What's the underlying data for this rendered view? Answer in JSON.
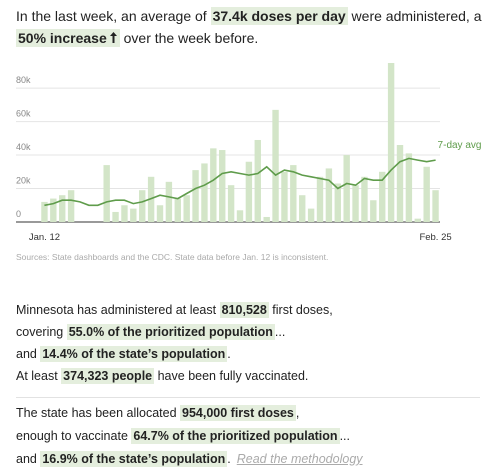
{
  "headline": [
    "In the last week, an average of",
    "37.4k doses per day",
    "were administered, a",
    "50% increase",
    "over the week before."
  ],
  "chart_data": {
    "type": "bar",
    "categories": [
      "Jan. 12",
      null,
      null,
      null,
      null,
      null,
      null,
      null,
      null,
      null,
      null,
      null,
      null,
      null,
      null,
      null,
      null,
      null,
      null,
      null,
      null,
      null,
      null,
      null,
      null,
      null,
      null,
      null,
      null,
      null,
      null,
      null,
      null,
      null,
      null,
      null,
      null,
      null,
      null,
      null,
      null,
      null,
      null,
      null,
      "Feb. 25"
    ],
    "series": [
      {
        "type": "bar",
        "color": "#d3e5c8",
        "values": [
          12000,
          14000,
          16000,
          19000,
          0,
          0,
          0,
          34000,
          6000,
          10000,
          8000,
          19000,
          27000,
          10000,
          24000,
          14000,
          16000,
          31000,
          35000,
          44000,
          43000,
          22000,
          7000,
          36000,
          49000,
          3000,
          67000,
          30000,
          34000,
          16000,
          8000,
          27000,
          32000,
          23000,
          40000,
          22000,
          27000,
          13000,
          30000,
          95000,
          46000,
          41000,
          2000,
          33000,
          19000
        ]
      },
      {
        "type": "line",
        "name": "7-day avg",
        "color": "#5f9c4b",
        "values": [
          10000,
          11000,
          13000,
          13000,
          12000,
          10000,
          10000,
          12000,
          13000,
          13000,
          11000,
          12000,
          14000,
          16000,
          15000,
          14000,
          17000,
          20000,
          22000,
          25000,
          29000,
          30000,
          29000,
          28000,
          29000,
          33000,
          28000,
          31000,
          30000,
          28000,
          27000,
          26000,
          25000,
          20000,
          23000,
          22000,
          26000,
          25000,
          25000,
          31000,
          36000,
          38000,
          37000,
          36000,
          37000
        ]
      }
    ],
    "ylim": [
      0,
      95000
    ],
    "yticks": [
      0,
      {
        "value": 20000,
        "label": "20k"
      },
      {
        "value": 40000,
        "label": "40k"
      },
      {
        "value": 60000,
        "label": "60k"
      },
      {
        "value": 80000,
        "label": "80k"
      }
    ],
    "grid": true
  },
  "source": "Sources: State dashboards and the CDC. State data before Jan. 12 is inconsistent.",
  "block1": [
    [
      "Minnesota has administered at least",
      "810,528",
      "first doses,"
    ],
    [
      "covering",
      "55.0% of the prioritized population",
      "..."
    ],
    [
      "and",
      "14.4% of the state’s population",
      "."
    ],
    [
      "At least",
      "374,323 people",
      "have been fully vaccinated."
    ]
  ],
  "block2": [
    [
      "The state has been allocated",
      "954,000 first doses",
      ","
    ],
    [
      "enough to vaccinate",
      "64.7% of the prioritized population",
      "..."
    ],
    [
      "and",
      "16.9% of the state’s population",
      ".",
      "Read the methodology"
    ]
  ]
}
